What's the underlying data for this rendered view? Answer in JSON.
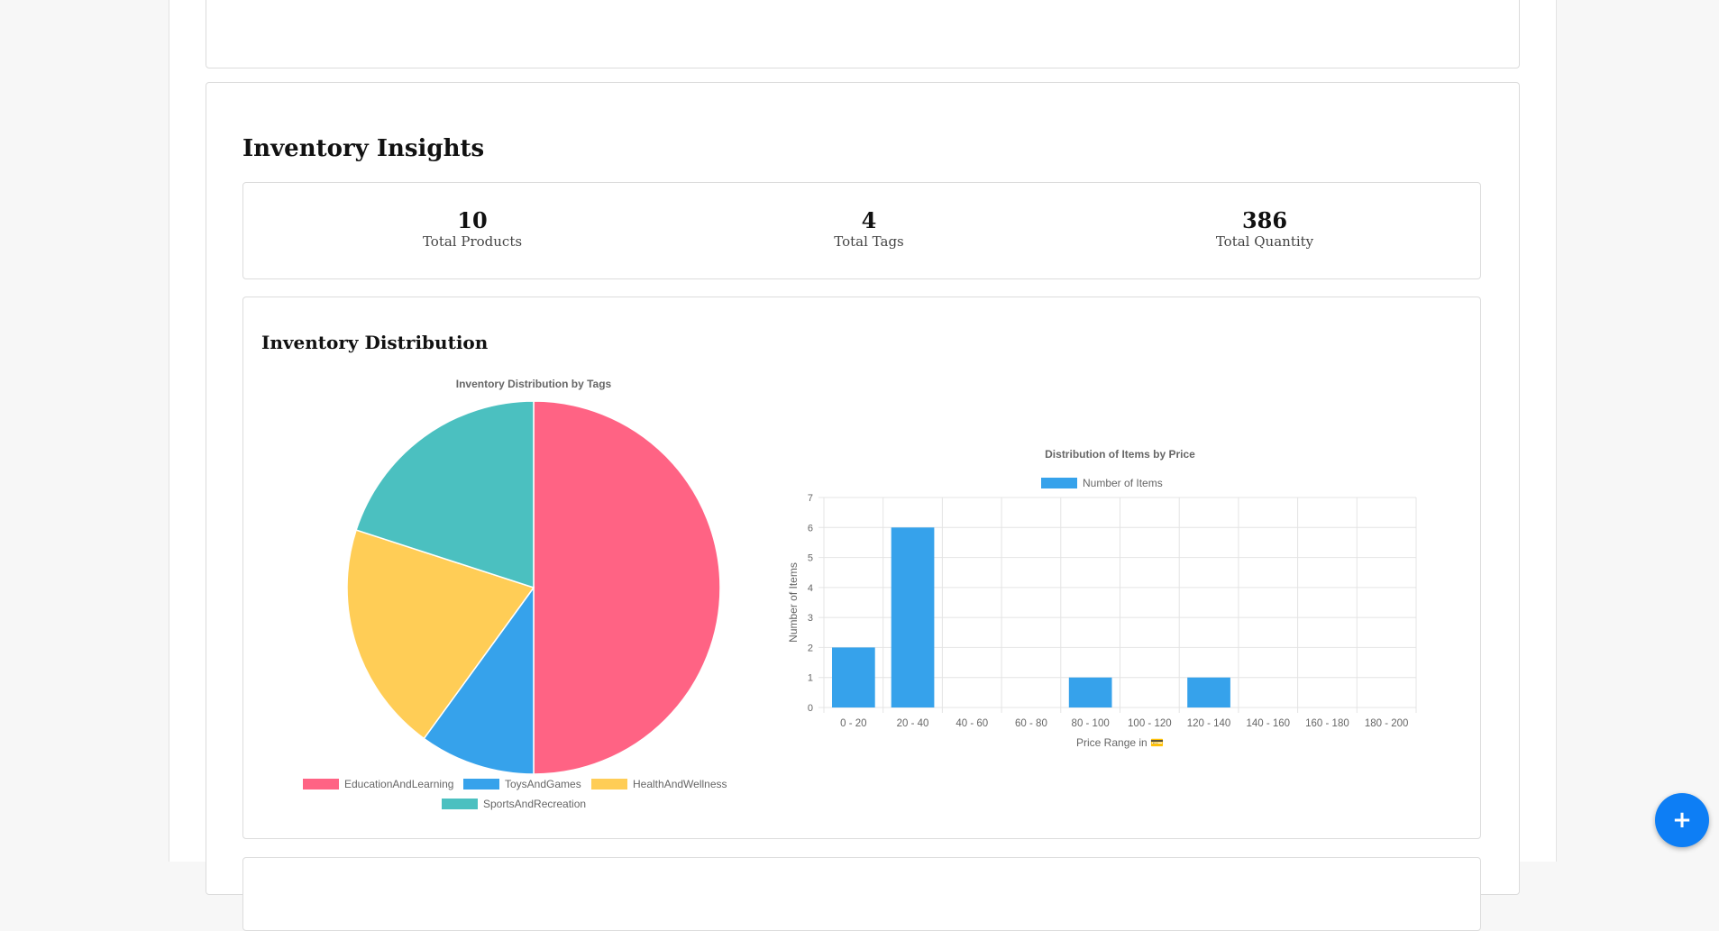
{
  "insights": {
    "title": "Inventory Insights",
    "stats": [
      {
        "value": "10",
        "label": "Total Products"
      },
      {
        "value": "4",
        "label": "Total Tags"
      },
      {
        "value": "386",
        "label": "Total Quantity"
      }
    ]
  },
  "distribution": {
    "title": "Inventory Distribution"
  },
  "chart_data": [
    {
      "type": "pie",
      "title": "Inventory Distribution by Tags",
      "categories": [
        "EducationAndLearning",
        "ToysAndGames",
        "HealthAndWellness",
        "SportsAndRecreation"
      ],
      "values": [
        5,
        1,
        2,
        2
      ],
      "colors": [
        "#ff6384",
        "#36a2eb",
        "#ffcd56",
        "#4bc0c0"
      ],
      "legend": "bottom"
    },
    {
      "type": "bar",
      "title": "Distribution of Items by Price",
      "categories": [
        "0 - 20",
        "20 - 40",
        "40 - 60",
        "60 - 80",
        "80 - 100",
        "100 - 120",
        "120 - 140",
        "140 - 160",
        "160 - 180",
        "180 - 200"
      ],
      "series": [
        {
          "name": "Number of Items",
          "values": [
            2,
            6,
            0,
            0,
            1,
            0,
            1,
            0,
            0,
            0
          ]
        }
      ],
      "xlabel": "Price Range in 💳",
      "ylabel": "Number of Items",
      "ylim": [
        0,
        7
      ],
      "yticks": [
        "0",
        "1",
        "2",
        "3",
        "4",
        "5",
        "6",
        "7"
      ],
      "color": "#36a2eb",
      "grid": true,
      "legend": "top"
    }
  ],
  "fab": {
    "label": "+",
    "icon": "plus-icon"
  }
}
